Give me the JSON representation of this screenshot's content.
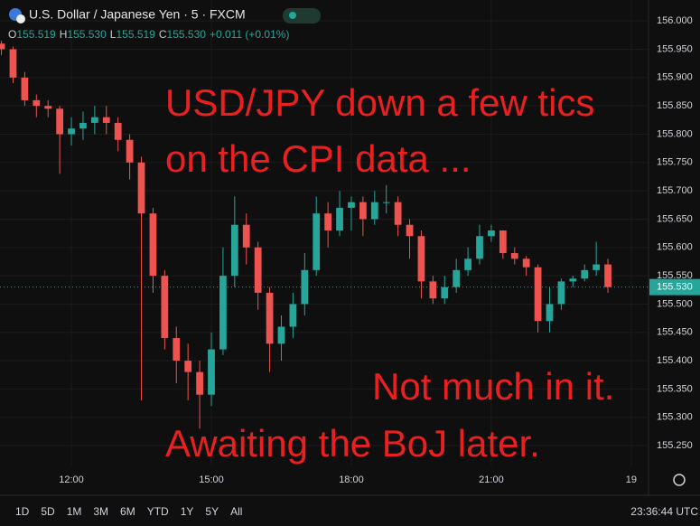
{
  "header": {
    "symbol": "U.S. Dollar / Japanese Yen · 5 · FXCM",
    "ohlc": [
      {
        "key": "O",
        "value": "155.519"
      },
      {
        "key": "H",
        "value": "155.530"
      },
      {
        "key": "L",
        "value": "155.519"
      },
      {
        "key": "C",
        "value": "155.530"
      }
    ],
    "change": "+0.011 (+0.01%)"
  },
  "chart_data": {
    "type": "candlestick",
    "x": [
      10.5,
      10.75,
      11,
      11.25,
      11.5,
      11.75,
      12,
      12.25,
      12.5,
      12.75,
      13,
      13.25,
      13.5,
      13.75,
      14,
      14.25,
      14.5,
      14.75,
      15,
      15.25,
      15.5,
      15.75,
      16,
      16.25,
      16.5,
      16.75,
      17,
      17.25,
      17.5,
      17.75,
      18,
      18.25,
      18.5,
      18.75,
      19,
      19.25,
      19.5,
      19.75,
      20,
      20.25,
      20.5,
      20.75,
      21,
      21.25,
      21.5,
      21.75,
      22,
      22.25,
      22.5,
      22.75,
      23,
      23.25,
      23.5
    ],
    "open": [
      155.96,
      155.95,
      155.9,
      155.86,
      155.85,
      155.845,
      155.8,
      155.81,
      155.82,
      155.83,
      155.82,
      155.79,
      155.75,
      155.66,
      155.55,
      155.44,
      155.4,
      155.38,
      155.34,
      155.42,
      155.55,
      155.64,
      155.6,
      155.52,
      155.43,
      155.46,
      155.5,
      155.56,
      155.66,
      155.63,
      155.67,
      155.68,
      155.65,
      155.68,
      155.68,
      155.64,
      155.62,
      155.54,
      155.51,
      155.53,
      155.56,
      155.58,
      155.62,
      155.63,
      155.59,
      155.58,
      155.565,
      155.47,
      155.5,
      155.54,
      155.545,
      155.56,
      155.57
    ],
    "high": [
      155.965,
      155.955,
      155.91,
      155.87,
      155.86,
      155.85,
      155.83,
      155.84,
      155.85,
      155.85,
      155.83,
      155.8,
      155.76,
      155.67,
      155.56,
      155.46,
      155.43,
      155.4,
      155.45,
      155.6,
      155.69,
      155.66,
      155.61,
      155.53,
      155.48,
      155.52,
      155.59,
      155.69,
      155.68,
      155.7,
      155.69,
      155.69,
      155.7,
      155.71,
      155.69,
      155.65,
      155.63,
      155.55,
      155.55,
      155.58,
      155.6,
      155.64,
      155.64,
      155.63,
      155.6,
      155.585,
      155.57,
      155.53,
      155.545,
      155.55,
      155.57,
      155.61,
      155.58
    ],
    "low": [
      155.94,
      155.89,
      155.85,
      155.83,
      155.83,
      155.73,
      155.78,
      155.79,
      155.8,
      155.8,
      155.77,
      155.72,
      155.33,
      155.52,
      155.42,
      155.36,
      155.33,
      155.28,
      155.32,
      155.41,
      155.53,
      155.57,
      155.49,
      155.38,
      155.4,
      155.44,
      155.48,
      155.55,
      155.6,
      155.62,
      155.63,
      155.62,
      155.64,
      155.66,
      155.62,
      155.58,
      155.51,
      155.5,
      155.5,
      155.52,
      155.55,
      155.57,
      155.61,
      155.58,
      155.57,
      155.55,
      155.45,
      155.45,
      155.49,
      155.53,
      155.54,
      155.55,
      155.52
    ],
    "close": [
      155.95,
      155.9,
      155.86,
      155.85,
      155.845,
      155.8,
      155.81,
      155.82,
      155.83,
      155.82,
      155.79,
      155.75,
      155.66,
      155.55,
      155.44,
      155.4,
      155.38,
      155.34,
      155.42,
      155.55,
      155.64,
      155.6,
      155.52,
      155.43,
      155.46,
      155.5,
      155.56,
      155.66,
      155.63,
      155.67,
      155.68,
      155.65,
      155.68,
      155.68,
      155.64,
      155.62,
      155.54,
      155.51,
      155.53,
      155.56,
      155.58,
      155.62,
      155.63,
      155.59,
      155.58,
      155.565,
      155.47,
      155.5,
      155.54,
      155.545,
      155.56,
      155.57,
      155.53
    ],
    "up_color": "#26a69a",
    "down_color": "#ef5350",
    "xlim": [
      10.47,
      24.37
    ],
    "xticks": [
      {
        "value": 12,
        "label": "12:00"
      },
      {
        "value": 15,
        "label": "15:00"
      },
      {
        "value": 18,
        "label": "18:00"
      },
      {
        "value": 21,
        "label": "21:00"
      },
      {
        "value": 24,
        "label": "19"
      }
    ],
    "ylim": [
      155.215,
      156.037
    ],
    "yticks": [
      {
        "value": 155.25,
        "label": "155.250"
      },
      {
        "value": 155.3,
        "label": "155.300"
      },
      {
        "value": 155.35,
        "label": "155.350"
      },
      {
        "value": 155.4,
        "label": "155.400"
      },
      {
        "value": 155.45,
        "label": "155.450"
      },
      {
        "value": 155.5,
        "label": "155.500"
      },
      {
        "value": 155.55,
        "label": "155.550"
      },
      {
        "value": 155.6,
        "label": "155.600"
      },
      {
        "value": 155.65,
        "label": "155.650"
      },
      {
        "value": 155.7,
        "label": "155.700"
      },
      {
        "value": 155.75,
        "label": "155.750"
      },
      {
        "value": 155.8,
        "label": "155.800"
      },
      {
        "value": 155.85,
        "label": "155.850"
      },
      {
        "value": 155.9,
        "label": "155.900"
      },
      {
        "value": 155.95,
        "label": "155.950"
      },
      {
        "value": 156,
        "label": "156.000"
      }
    ],
    "grid": true,
    "last_price": {
      "value": 155.53,
      "label": "155.530"
    },
    "annotations": [
      "USD/JPY down a few tics",
      "on the CPI data ...",
      "Not much in it.",
      "Awaiting the BoJ later."
    ]
  },
  "toolbar": {
    "ranges": [
      "1D",
      "5D",
      "1M",
      "3M",
      "6M",
      "YTD",
      "1Y",
      "5Y",
      "All"
    ],
    "clock": "23:36:44 UTC"
  }
}
